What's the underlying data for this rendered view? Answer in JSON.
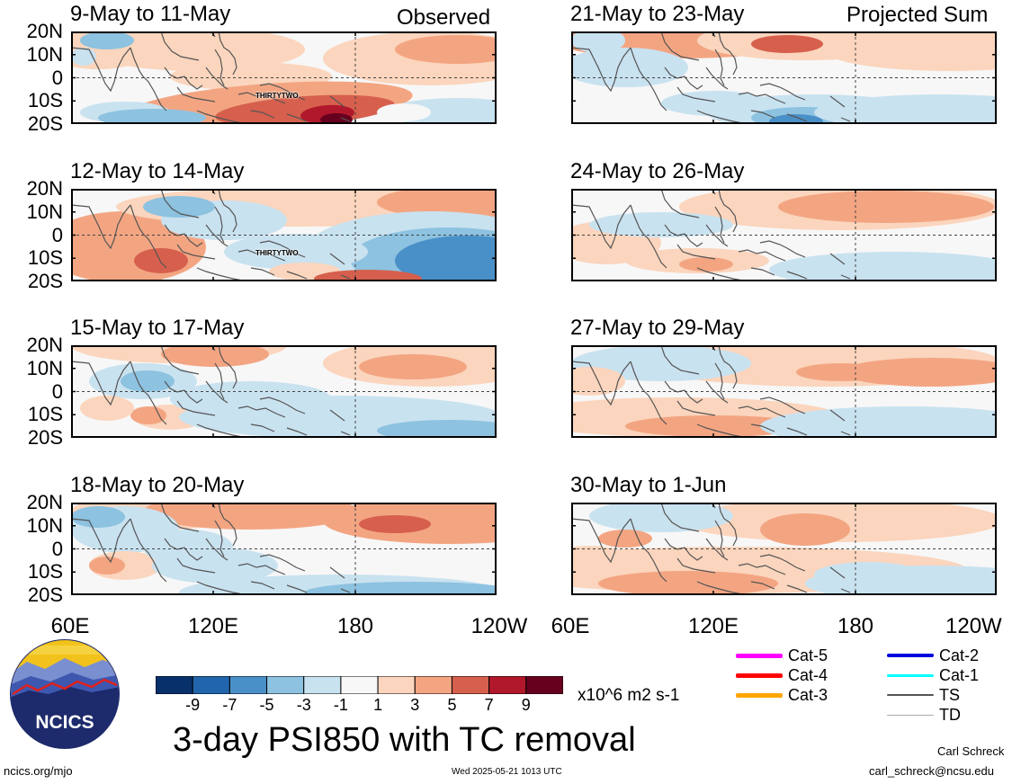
{
  "header": {
    "left_column_label": "Observed",
    "right_column_label": "Projected Sum"
  },
  "left_panels": [
    {
      "title": "9-May to 11-May",
      "storm_label": "THIRTYTWO"
    },
    {
      "title": "12-May to 14-May",
      "storm_label": "THIRTYTWO"
    },
    {
      "title": "15-May to 17-May",
      "storm_label": ""
    },
    {
      "title": "18-May to 20-May",
      "storm_label": ""
    }
  ],
  "right_panels": [
    {
      "title": "21-May to 23-May"
    },
    {
      "title": "24-May to 26-May"
    },
    {
      "title": "27-May to 29-May"
    },
    {
      "title": "30-May to 1-Jun"
    }
  ],
  "lat_labels": [
    "20N",
    "10N",
    "0",
    "10S",
    "20S"
  ],
  "lon_labels": [
    "60E",
    "120E",
    "180",
    "120W"
  ],
  "colorbar": {
    "ticks": [
      "-9",
      "-7",
      "-5",
      "-3",
      "-1",
      "1",
      "3",
      "5",
      "7",
      "9"
    ],
    "colors": [
      "#08306b",
      "#2166ac",
      "#4a90c8",
      "#8dc2e0",
      "#c9e2f0",
      "#f7f7f7",
      "#fbd5bd",
      "#f3a582",
      "#d6604d",
      "#b2182b",
      "#67001f"
    ],
    "units": "x10^6 m2 s-1"
  },
  "title": "3-day PSI850 with TC removal",
  "legend": {
    "col1": [
      {
        "label": "Cat-5",
        "color": "#ff00ff",
        "width": 5
      },
      {
        "label": "Cat-4",
        "color": "#ff0000",
        "width": 5
      },
      {
        "label": "Cat-3",
        "color": "#ffa500",
        "width": 5
      }
    ],
    "col2": [
      {
        "label": "Cat-2",
        "color": "#0000dd",
        "width": 4
      },
      {
        "label": "Cat-1",
        "color": "#00ffff",
        "width": 3
      },
      {
        "label": "TS",
        "color": "#555555",
        "width": 2
      },
      {
        "label": "TD",
        "color": "#aaaaaa",
        "width": 1
      }
    ]
  },
  "logo": {
    "text": "NCICS"
  },
  "footer": {
    "url": "ncics.org/mjo",
    "timestamp": "Wed 2025-05-21 1013 UTC",
    "author": "Carl Schreck",
    "email": "carl_schreck@ncsu.edu"
  }
}
